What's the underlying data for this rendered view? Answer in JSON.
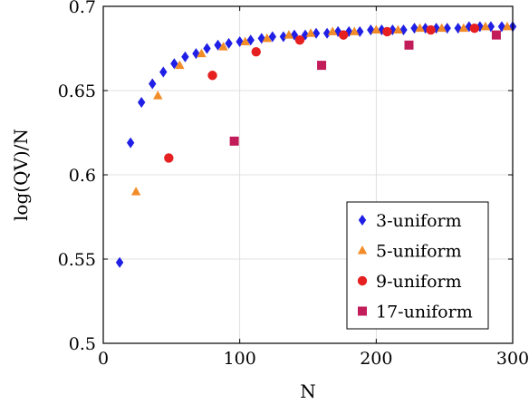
{
  "chart_data": {
    "type": "scatter",
    "title": "",
    "xlabel": "N",
    "ylabel": "log(QV)/N",
    "xlim": [
      0,
      300
    ],
    "ylim": [
      0.5,
      0.7
    ],
    "xticks": [
      0,
      100,
      200,
      300
    ],
    "yticks": [
      0.5,
      0.55,
      0.6,
      0.65,
      0.7
    ],
    "xtick_labels": [
      "0",
      "100",
      "200",
      "300"
    ],
    "ytick_labels": [
      "0.5",
      "0.55",
      "0.6",
      "0.65",
      "0.7"
    ],
    "grid": true,
    "legend_position": "bottom-right",
    "series": [
      {
        "name": "3-uniform",
        "marker": "diamond",
        "color": "#1f1fe6",
        "points": [
          [
            12,
            0.548
          ],
          [
            20,
            0.619
          ],
          [
            28,
            0.643
          ],
          [
            36,
            0.654
          ],
          [
            44,
            0.661
          ],
          [
            52,
            0.666
          ],
          [
            60,
            0.67
          ],
          [
            68,
            0.672
          ],
          [
            76,
            0.675
          ],
          [
            84,
            0.677
          ],
          [
            92,
            0.678
          ],
          [
            100,
            0.679
          ],
          [
            108,
            0.68
          ],
          [
            116,
            0.681
          ],
          [
            124,
            0.682
          ],
          [
            132,
            0.682
          ],
          [
            140,
            0.683
          ],
          [
            148,
            0.683
          ],
          [
            156,
            0.684
          ],
          [
            164,
            0.684
          ],
          [
            172,
            0.685
          ],
          [
            180,
            0.685
          ],
          [
            188,
            0.685
          ],
          [
            196,
            0.686
          ],
          [
            204,
            0.686
          ],
          [
            212,
            0.686
          ],
          [
            220,
            0.686
          ],
          [
            228,
            0.687
          ],
          [
            236,
            0.687
          ],
          [
            244,
            0.687
          ],
          [
            252,
            0.687
          ],
          [
            260,
            0.687
          ],
          [
            268,
            0.688
          ],
          [
            276,
            0.688
          ],
          [
            284,
            0.688
          ],
          [
            292,
            0.688
          ],
          [
            300,
            0.688
          ]
        ]
      },
      {
        "name": "5-uniform",
        "marker": "triangle",
        "color": "#f28c28",
        "points": [
          [
            24,
            0.59
          ],
          [
            40,
            0.647
          ],
          [
            56,
            0.665
          ],
          [
            72,
            0.672
          ],
          [
            88,
            0.676
          ],
          [
            104,
            0.679
          ],
          [
            120,
            0.681
          ],
          [
            136,
            0.683
          ],
          [
            152,
            0.684
          ],
          [
            168,
            0.685
          ],
          [
            184,
            0.685
          ],
          [
            200,
            0.686
          ],
          [
            216,
            0.686
          ],
          [
            232,
            0.687
          ],
          [
            248,
            0.687
          ],
          [
            264,
            0.687
          ],
          [
            280,
            0.688
          ],
          [
            296,
            0.688
          ]
        ]
      },
      {
        "name": "9-uniform",
        "marker": "circle",
        "color": "#e62020",
        "points": [
          [
            48,
            0.61
          ],
          [
            80,
            0.659
          ],
          [
            112,
            0.673
          ],
          [
            144,
            0.68
          ],
          [
            176,
            0.683
          ],
          [
            208,
            0.685
          ],
          [
            240,
            0.686
          ],
          [
            272,
            0.687
          ]
        ]
      },
      {
        "name": "17-uniform",
        "marker": "square",
        "color": "#c21c5a",
        "points": [
          [
            96,
            0.62
          ],
          [
            160,
            0.665
          ],
          [
            224,
            0.677
          ],
          [
            288,
            0.683
          ]
        ]
      }
    ]
  }
}
